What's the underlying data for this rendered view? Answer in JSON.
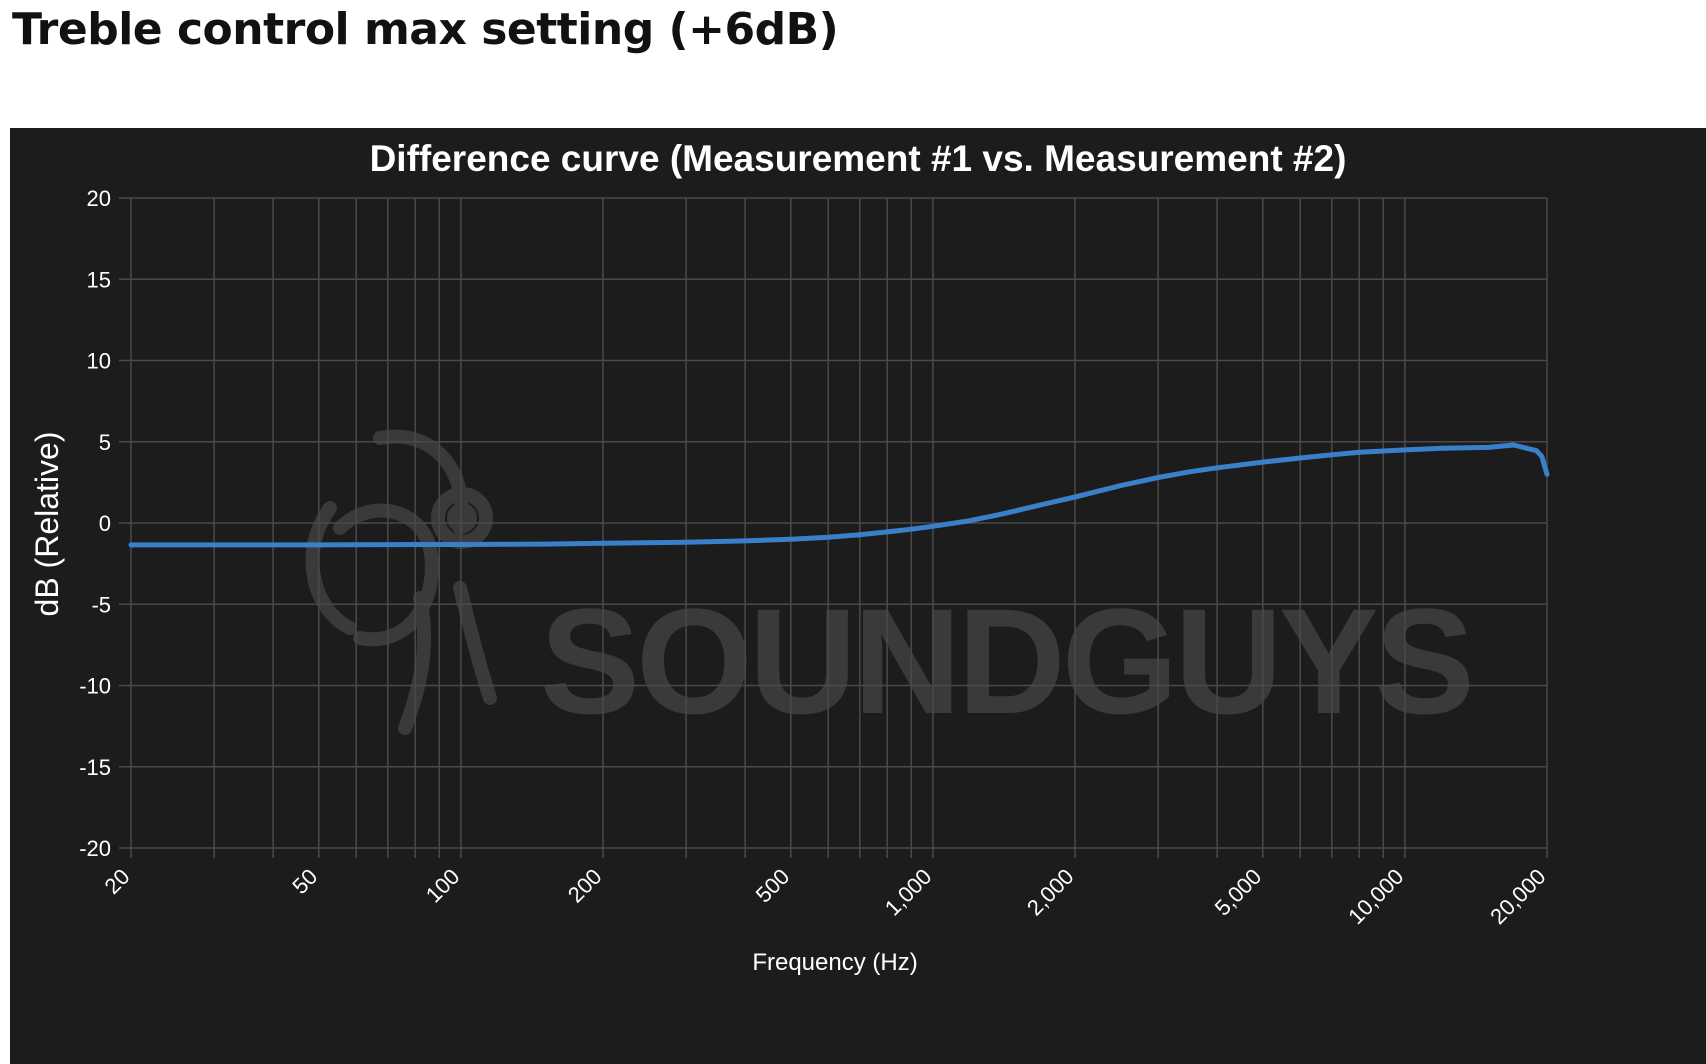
{
  "page": {
    "heading": "Treble control max setting (+6dB)"
  },
  "colors": {
    "background": "#1c1c1c",
    "grid": "#4a4a4a",
    "line": "#3a7fc9",
    "text": "#ffffff",
    "watermark": "#3a3a3a"
  },
  "watermark": {
    "text": "SOUNDGUYS",
    "icon": "soundguys-headphones-logo-icon"
  },
  "chart_data": {
    "type": "line",
    "title": "Difference curve (Measurement #1 vs. Measurement #2)",
    "xlabel": "Frequency (Hz)",
    "ylabel": "dB (Relative)",
    "xscale": "log",
    "xlim": [
      20,
      20000
    ],
    "ylim": [
      -20,
      20
    ],
    "x_ticks": [
      20,
      50,
      100,
      200,
      500,
      1000,
      2000,
      5000,
      10000,
      20000
    ],
    "x_tick_labels": [
      "20",
      "50",
      "100",
      "200",
      "500",
      "1,000",
      "2,000",
      "5,000",
      "10,000",
      "20,000"
    ],
    "y_ticks": [
      20,
      15,
      10,
      5,
      0,
      -5,
      -10,
      -15,
      -20
    ],
    "y_tick_labels": [
      "20",
      "15",
      "10",
      "5",
      "0",
      "-5",
      "-10",
      "-15",
      "-20"
    ],
    "grid": true,
    "legend": "none",
    "series": [
      {
        "x": [
          20,
          30,
          50,
          70,
          100,
          150,
          200,
          300,
          400,
          500,
          600,
          700,
          800,
          900,
          1000,
          1200,
          1400,
          1600,
          1800,
          2000,
          2500,
          3000,
          3500,
          4000,
          5000,
          6000,
          7000,
          8000,
          10000,
          12000,
          15000,
          17000,
          19000,
          19500,
          20000
        ],
        "y": [
          -1.35,
          -1.35,
          -1.35,
          -1.33,
          -1.32,
          -1.3,
          -1.25,
          -1.18,
          -1.1,
          -1.0,
          -0.88,
          -0.72,
          -0.55,
          -0.38,
          -0.2,
          0.15,
          0.55,
          0.95,
          1.3,
          1.6,
          2.3,
          2.8,
          3.15,
          3.4,
          3.75,
          4.0,
          4.2,
          4.35,
          4.5,
          4.6,
          4.65,
          4.8,
          4.45,
          4.1,
          3.0
        ]
      }
    ]
  }
}
